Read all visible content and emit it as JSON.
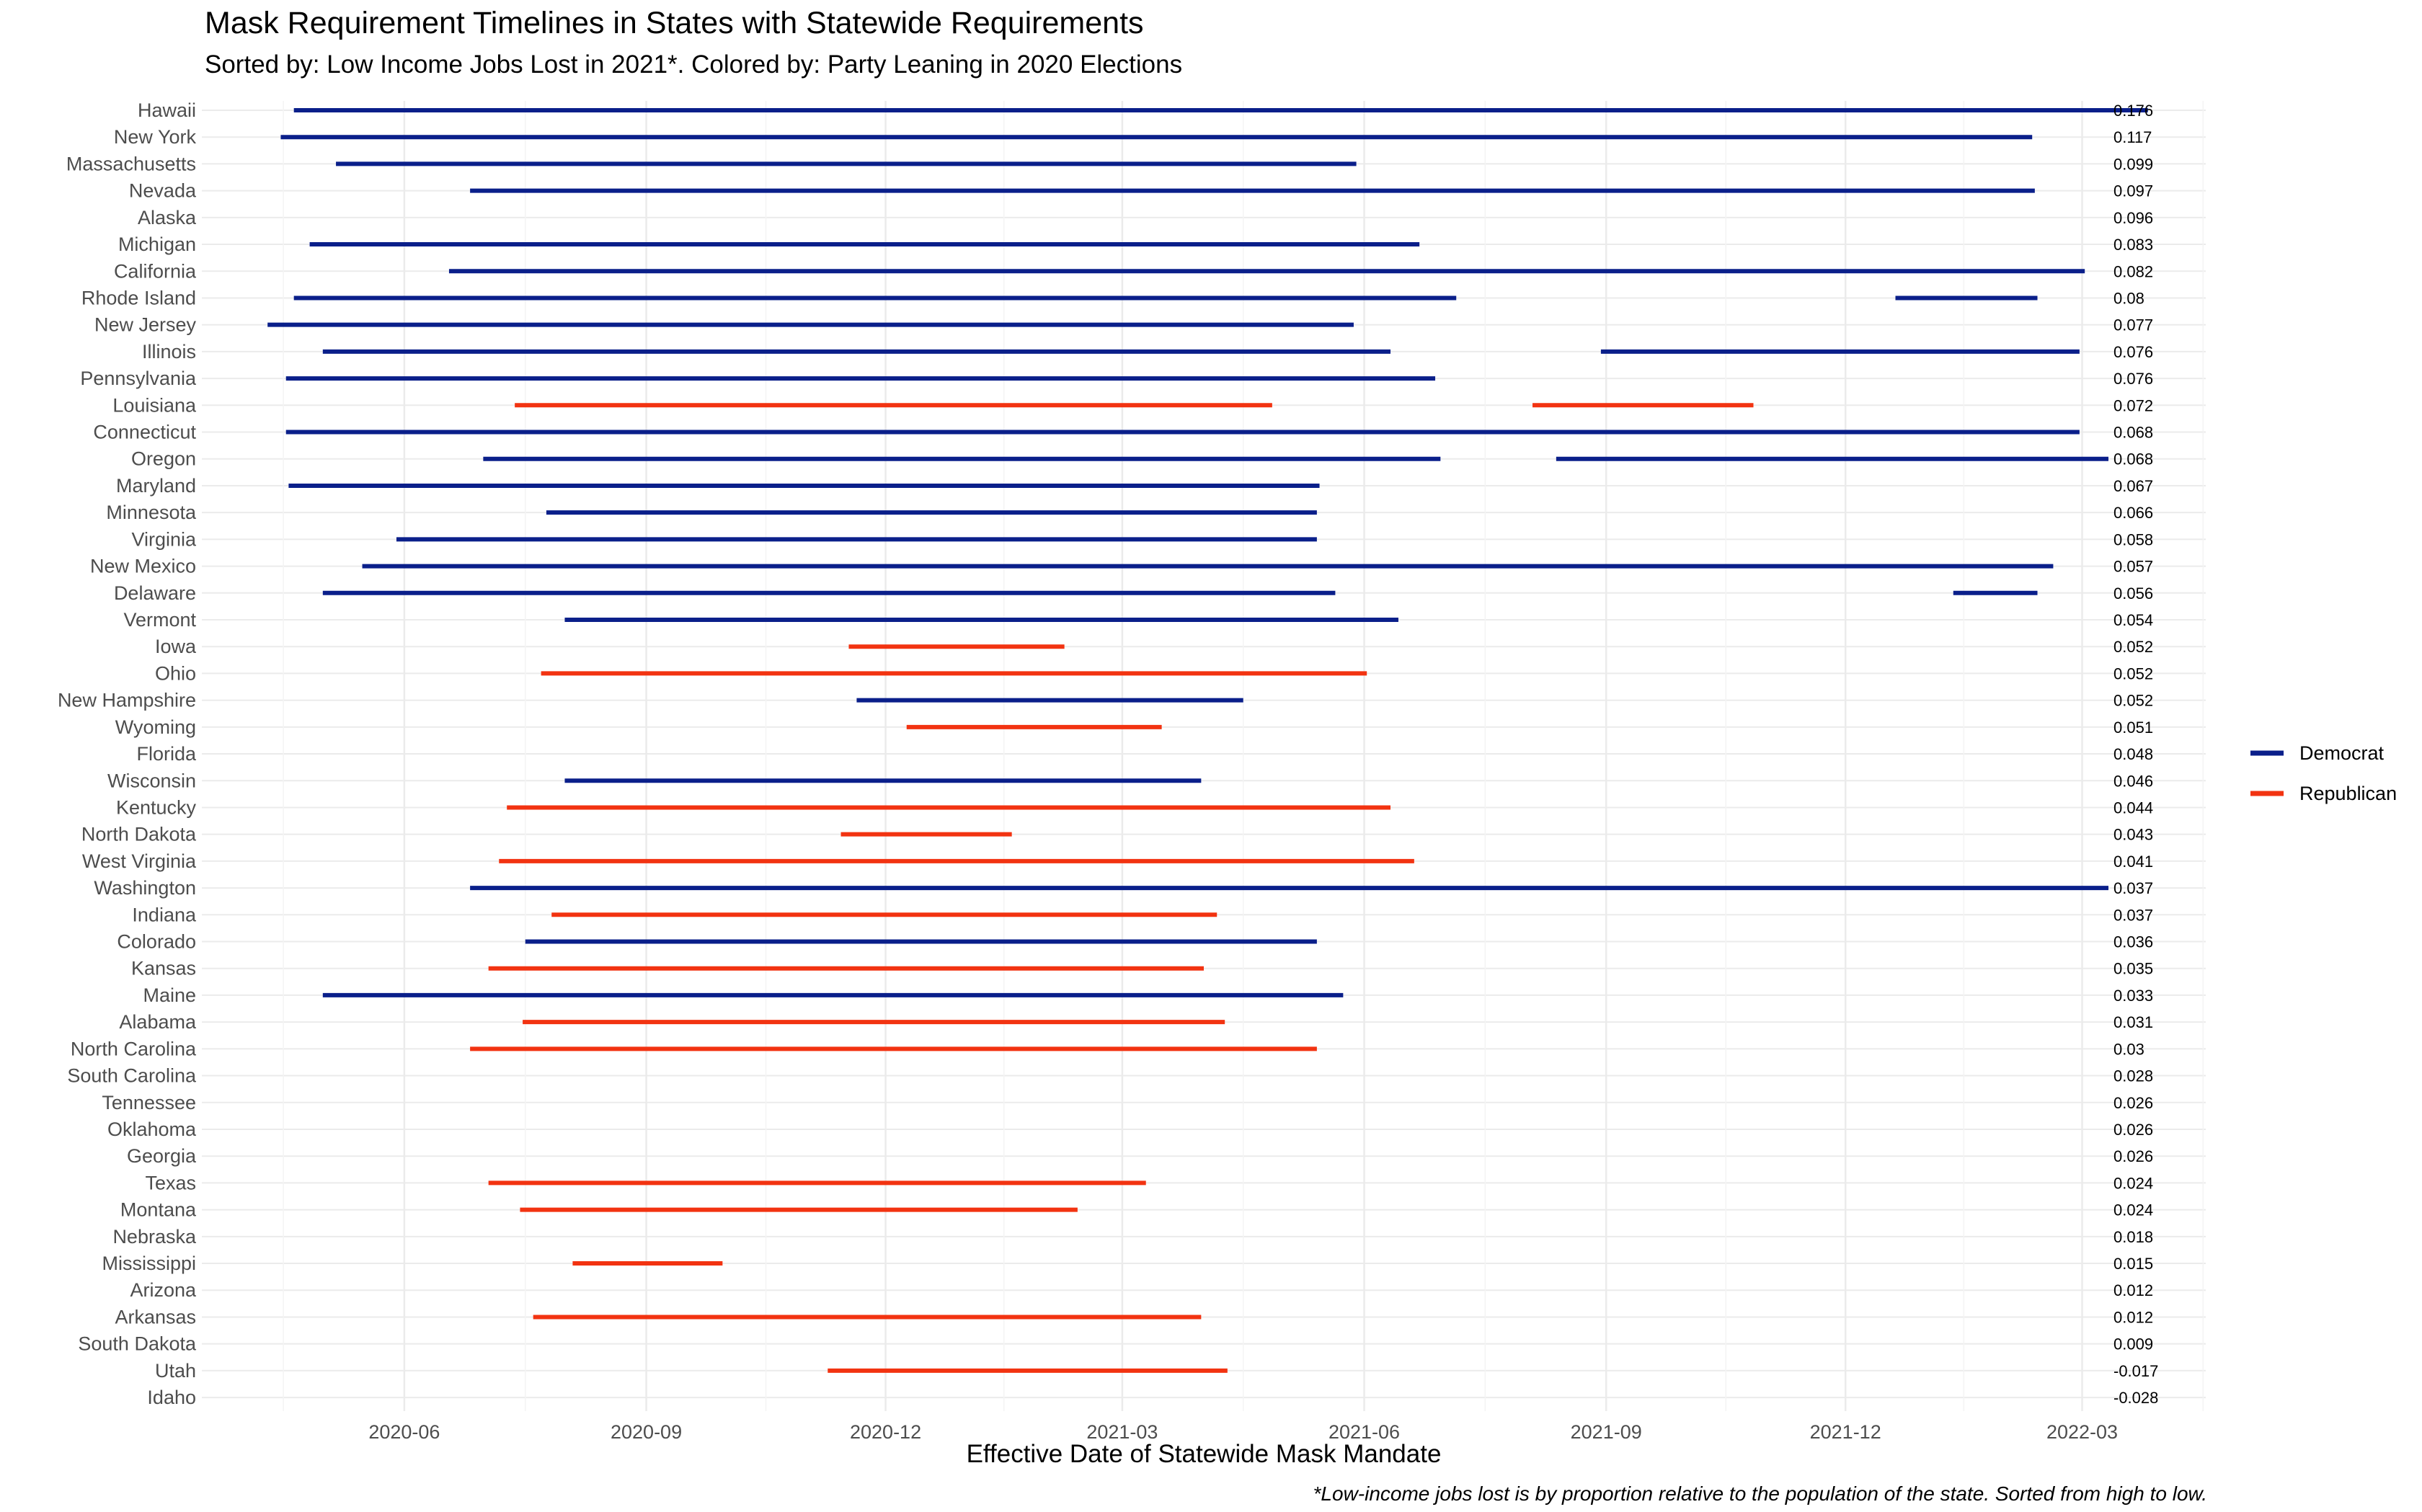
{
  "chart_data": {
    "type": "gantt",
    "title": "Mask Requirement Timelines in States with Statewide Requirements",
    "subtitle": "Sorted by: Low Income Jobs Lost in 2021*. Colored by: Party Leaning in 2020 Elections",
    "xlabel": "Effective Date of Statewide Mask Mandate",
    "ylabel": "",
    "caption": "*Low-income jobs lost is by proportion relative to the population of the state. Sorted from high to low.",
    "x_ticks": [
      "2020-06",
      "2020-09",
      "2020-12",
      "2021-03",
      "2021-06",
      "2021-09",
      "2021-12",
      "2022-03"
    ],
    "x_range": [
      "2020-03-16",
      "2022-04-17"
    ],
    "grid": true,
    "legend_position": "right",
    "series": [
      {
        "name": "Democrat",
        "color": "#0a1f8a"
      },
      {
        "name": "Republican",
        "color": "#f23311"
      }
    ],
    "rows": [
      {
        "state": "Hawaii",
        "value": "0.176",
        "party": "Democrat",
        "intervals": [
          [
            "2020-04-20",
            "2022-03-26"
          ]
        ]
      },
      {
        "state": "New York",
        "value": "0.117",
        "party": "Democrat",
        "intervals": [
          [
            "2020-04-15",
            "2022-02-10"
          ]
        ]
      },
      {
        "state": "Massachusetts",
        "value": "0.099",
        "party": "Democrat",
        "intervals": [
          [
            "2020-05-06",
            "2021-05-29"
          ]
        ]
      },
      {
        "state": "Nevada",
        "value": "0.097",
        "party": "Democrat",
        "intervals": [
          [
            "2020-06-26",
            "2022-02-11"
          ]
        ]
      },
      {
        "state": "Alaska",
        "value": "0.096",
        "party": "Democrat",
        "intervals": []
      },
      {
        "state": "Michigan",
        "value": "0.083",
        "party": "Democrat",
        "intervals": [
          [
            "2020-04-26",
            "2021-06-22"
          ]
        ]
      },
      {
        "state": "California",
        "value": "0.082",
        "party": "Democrat",
        "intervals": [
          [
            "2020-06-18",
            "2022-03-02"
          ]
        ]
      },
      {
        "state": "Rhode Island",
        "value": "0.08",
        "party": "Democrat",
        "intervals": [
          [
            "2020-04-20",
            "2021-07-06"
          ],
          [
            "2021-12-20",
            "2022-02-12"
          ]
        ]
      },
      {
        "state": "New Jersey",
        "value": "0.077",
        "party": "Democrat",
        "intervals": [
          [
            "2020-04-10",
            "2021-05-28"
          ]
        ]
      },
      {
        "state": "Illinois",
        "value": "0.076",
        "party": "Democrat",
        "intervals": [
          [
            "2020-05-01",
            "2021-06-11"
          ],
          [
            "2021-08-30",
            "2022-02-28"
          ]
        ]
      },
      {
        "state": "Pennsylvania",
        "value": "0.076",
        "party": "Democrat",
        "intervals": [
          [
            "2020-04-17",
            "2021-06-28"
          ]
        ]
      },
      {
        "state": "Louisiana",
        "value": "0.072",
        "party": "Republican",
        "intervals": [
          [
            "2020-07-13",
            "2021-04-27"
          ],
          [
            "2021-08-04",
            "2021-10-27"
          ]
        ]
      },
      {
        "state": "Connecticut",
        "value": "0.068",
        "party": "Democrat",
        "intervals": [
          [
            "2020-04-17",
            "2022-02-28"
          ]
        ]
      },
      {
        "state": "Oregon",
        "value": "0.068",
        "party": "Democrat",
        "intervals": [
          [
            "2020-07-01",
            "2021-06-30"
          ],
          [
            "2021-08-13",
            "2022-03-11"
          ]
        ]
      },
      {
        "state": "Maryland",
        "value": "0.067",
        "party": "Democrat",
        "intervals": [
          [
            "2020-04-18",
            "2021-05-15"
          ]
        ]
      },
      {
        "state": "Minnesota",
        "value": "0.066",
        "party": "Democrat",
        "intervals": [
          [
            "2020-07-25",
            "2021-05-14"
          ]
        ]
      },
      {
        "state": "Virginia",
        "value": "0.058",
        "party": "Democrat",
        "intervals": [
          [
            "2020-05-29",
            "2021-05-14"
          ]
        ]
      },
      {
        "state": "New Mexico",
        "value": "0.057",
        "party": "Democrat",
        "intervals": [
          [
            "2020-05-16",
            "2022-02-18"
          ]
        ]
      },
      {
        "state": "Delaware",
        "value": "0.056",
        "party": "Democrat",
        "intervals": [
          [
            "2020-05-01",
            "2021-05-21"
          ],
          [
            "2022-01-11",
            "2022-02-12"
          ]
        ]
      },
      {
        "state": "Vermont",
        "value": "0.054",
        "party": "Democrat",
        "intervals": [
          [
            "2020-08-01",
            "2021-06-14"
          ]
        ]
      },
      {
        "state": "Iowa",
        "value": "0.052",
        "party": "Republican",
        "intervals": [
          [
            "2020-11-17",
            "2021-02-07"
          ]
        ]
      },
      {
        "state": "Ohio",
        "value": "0.052",
        "party": "Republican",
        "intervals": [
          [
            "2020-07-23",
            "2021-06-02"
          ]
        ]
      },
      {
        "state": "New Hampshire",
        "value": "0.052",
        "party": "Democrat",
        "intervals": [
          [
            "2020-11-20",
            "2021-04-16"
          ]
        ]
      },
      {
        "state": "Wyoming",
        "value": "0.051",
        "party": "Republican",
        "intervals": [
          [
            "2020-12-09",
            "2021-03-16"
          ]
        ]
      },
      {
        "state": "Florida",
        "value": "0.048",
        "party": "Republican",
        "intervals": []
      },
      {
        "state": "Wisconsin",
        "value": "0.046",
        "party": "Democrat",
        "intervals": [
          [
            "2020-08-01",
            "2021-03-31"
          ]
        ]
      },
      {
        "state": "Kentucky",
        "value": "0.044",
        "party": "Republican",
        "intervals": [
          [
            "2020-07-10",
            "2021-06-11"
          ]
        ]
      },
      {
        "state": "North Dakota",
        "value": "0.043",
        "party": "Republican",
        "intervals": [
          [
            "2020-11-14",
            "2021-01-18"
          ]
        ]
      },
      {
        "state": "West Virginia",
        "value": "0.041",
        "party": "Republican",
        "intervals": [
          [
            "2020-07-07",
            "2021-06-20"
          ]
        ]
      },
      {
        "state": "Washington",
        "value": "0.037",
        "party": "Democrat",
        "intervals": [
          [
            "2020-06-26",
            "2022-03-11"
          ]
        ]
      },
      {
        "state": "Indiana",
        "value": "0.037",
        "party": "Republican",
        "intervals": [
          [
            "2020-07-27",
            "2021-04-06"
          ]
        ]
      },
      {
        "state": "Colorado",
        "value": "0.036",
        "party": "Democrat",
        "intervals": [
          [
            "2020-07-17",
            "2021-05-14"
          ]
        ]
      },
      {
        "state": "Kansas",
        "value": "0.035",
        "party": "Republican",
        "intervals": [
          [
            "2020-07-03",
            "2021-04-01"
          ]
        ]
      },
      {
        "state": "Maine",
        "value": "0.033",
        "party": "Democrat",
        "intervals": [
          [
            "2020-05-01",
            "2021-05-24"
          ]
        ]
      },
      {
        "state": "Alabama",
        "value": "0.031",
        "party": "Republican",
        "intervals": [
          [
            "2020-07-16",
            "2021-04-09"
          ]
        ]
      },
      {
        "state": "North Carolina",
        "value": "0.03",
        "party": "Republican",
        "intervals": [
          [
            "2020-06-26",
            "2021-05-14"
          ]
        ]
      },
      {
        "state": "South Carolina",
        "value": "0.028",
        "party": "Republican",
        "intervals": []
      },
      {
        "state": "Tennessee",
        "value": "0.026",
        "party": "Republican",
        "intervals": []
      },
      {
        "state": "Oklahoma",
        "value": "0.026",
        "party": "Republican",
        "intervals": []
      },
      {
        "state": "Georgia",
        "value": "0.026",
        "party": "Republican",
        "intervals": []
      },
      {
        "state": "Texas",
        "value": "0.024",
        "party": "Republican",
        "intervals": [
          [
            "2020-07-03",
            "2021-03-10"
          ]
        ]
      },
      {
        "state": "Montana",
        "value": "0.024",
        "party": "Republican",
        "intervals": [
          [
            "2020-07-15",
            "2021-02-12"
          ]
        ]
      },
      {
        "state": "Nebraska",
        "value": "0.018",
        "party": "Republican",
        "intervals": []
      },
      {
        "state": "Mississippi",
        "value": "0.015",
        "party": "Republican",
        "intervals": [
          [
            "2020-08-04",
            "2020-09-30"
          ]
        ]
      },
      {
        "state": "Arizona",
        "value": "0.012",
        "party": "Republican",
        "intervals": []
      },
      {
        "state": "Arkansas",
        "value": "0.012",
        "party": "Republican",
        "intervals": [
          [
            "2020-07-20",
            "2021-03-31"
          ]
        ]
      },
      {
        "state": "South Dakota",
        "value": "0.009",
        "party": "Republican",
        "intervals": []
      },
      {
        "state": "Utah",
        "value": "-0.017",
        "party": "Republican",
        "intervals": [
          [
            "2020-11-09",
            "2021-04-10"
          ]
        ]
      },
      {
        "state": "Idaho",
        "value": "-0.028",
        "party": "Republican",
        "intervals": []
      }
    ]
  }
}
